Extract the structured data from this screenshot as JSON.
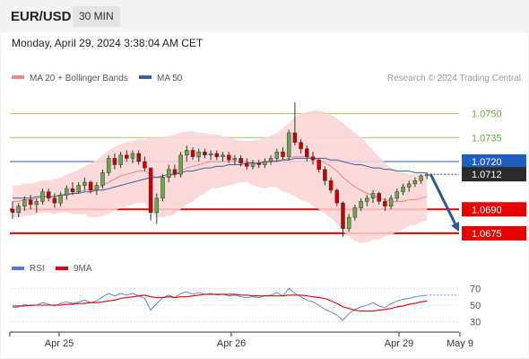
{
  "header": {
    "symbol": "EUR/USD",
    "timeframe": "30 MIN",
    "timestamp": "Monday, April 29, 2024 3:38:04 AM CET"
  },
  "legend": {
    "ma20_label": "MA 20 + Bollinger Bands",
    "ma50_label": "MA 50",
    "credit": "Research © 2024 Trading Central"
  },
  "colors": {
    "bull": "#6aa84f",
    "bear": "#cc0000",
    "ma20": "#e98b8b",
    "ma50": "#3b5fa0",
    "band_fill": "#fbd3d3",
    "support": "#e60000",
    "resistance": "#9ccc65",
    "pivot": "#1f5fbf",
    "arrow": "#2b5797",
    "rsi": "#4a7fd4",
    "rsi_ma": "#e60000"
  },
  "chart_data": [
    {
      "type": "candlestick",
      "title": "EUR/USD 30 MIN",
      "x_tick_labels": [
        "Apr 25",
        "Apr 26",
        "Apr 29",
        "May 9"
      ],
      "ylim": [
        1.0662,
        1.0765
      ],
      "candles": [
        [
          1.069,
          1.0695,
          1.0684,
          1.0688
        ],
        [
          1.0688,
          1.0694,
          1.0685,
          1.0692
        ],
        [
          1.0692,
          1.0698,
          1.0689,
          1.0696
        ],
        [
          1.0696,
          1.0699,
          1.069,
          1.0693
        ],
        [
          1.0693,
          1.0697,
          1.0688,
          1.0695
        ],
        [
          1.0695,
          1.0703,
          1.0693,
          1.0701
        ],
        [
          1.0701,
          1.0703,
          1.0695,
          1.0697
        ],
        [
          1.0697,
          1.07,
          1.0691,
          1.0694
        ],
        [
          1.0694,
          1.0701,
          1.0692,
          1.0699
        ],
        [
          1.0699,
          1.0705,
          1.0696,
          1.0703
        ],
        [
          1.0703,
          1.0707,
          1.0699,
          1.0701
        ],
        [
          1.0701,
          1.0707,
          1.07,
          1.0705
        ],
        [
          1.0705,
          1.071,
          1.0702,
          1.0707
        ],
        [
          1.0707,
          1.0708,
          1.07,
          1.0702
        ],
        [
          1.0702,
          1.0707,
          1.0699,
          1.0705
        ],
        [
          1.0705,
          1.0715,
          1.0703,
          1.0713
        ],
        [
          1.0713,
          1.0724,
          1.0711,
          1.0722
        ],
        [
          1.0722,
          1.0725,
          1.0715,
          1.0718
        ],
        [
          1.0718,
          1.0726,
          1.0716,
          1.0724
        ],
        [
          1.0724,
          1.0727,
          1.072,
          1.0722
        ],
        [
          1.0722,
          1.0727,
          1.0719,
          1.0725
        ],
        [
          1.0725,
          1.0727,
          1.0718,
          1.072
        ],
        [
          1.072,
          1.0723,
          1.0714,
          1.0716
        ],
        [
          1.0716,
          1.0716,
          1.0683,
          1.0688
        ],
        [
          1.0688,
          1.07,
          1.0681,
          1.0697
        ],
        [
          1.0697,
          1.0712,
          1.0695,
          1.071
        ],
        [
          1.071,
          1.0718,
          1.0707,
          1.0715
        ],
        [
          1.0715,
          1.0718,
          1.071,
          1.0712
        ],
        [
          1.0712,
          1.0726,
          1.071,
          1.0724
        ],
        [
          1.0724,
          1.073,
          1.072,
          1.0727
        ],
        [
          1.0727,
          1.0729,
          1.0721,
          1.0723
        ],
        [
          1.0723,
          1.0728,
          1.072,
          1.0726
        ],
        [
          1.0726,
          1.0728,
          1.0722,
          1.0724
        ],
        [
          1.0724,
          1.0727,
          1.0721,
          1.0725
        ],
        [
          1.0725,
          1.0727,
          1.0721,
          1.0723
        ],
        [
          1.0723,
          1.0726,
          1.072,
          1.0724
        ],
        [
          1.0724,
          1.0726,
          1.0719,
          1.0721
        ],
        [
          1.0721,
          1.0724,
          1.0718,
          1.0722
        ],
        [
          1.0722,
          1.0724,
          1.0717,
          1.0719
        ],
        [
          1.0719,
          1.0722,
          1.0715,
          1.0717
        ],
        [
          1.0717,
          1.0721,
          1.0715,
          1.0719
        ],
        [
          1.0719,
          1.0721,
          1.0716,
          1.0718
        ],
        [
          1.0718,
          1.0722,
          1.0716,
          1.072
        ],
        [
          1.072,
          1.0724,
          1.0718,
          1.0722
        ],
        [
          1.0722,
          1.0728,
          1.072,
          1.0726
        ],
        [
          1.0726,
          1.0729,
          1.0721,
          1.0723
        ],
        [
          1.0723,
          1.074,
          1.0721,
          1.0738
        ],
        [
          1.0738,
          1.0757,
          1.073,
          1.0732
        ],
        [
          1.0732,
          1.0734,
          1.0725,
          1.0728
        ],
        [
          1.0728,
          1.073,
          1.072,
          1.0723
        ],
        [
          1.0723,
          1.0726,
          1.0718,
          1.0721
        ],
        [
          1.0721,
          1.0722,
          1.0713,
          1.0715
        ],
        [
          1.0715,
          1.0717,
          1.0705,
          1.0708
        ],
        [
          1.0708,
          1.071,
          1.07,
          1.0702
        ],
        [
          1.0702,
          1.0703,
          1.0692,
          1.0694
        ],
        [
          1.0694,
          1.0695,
          1.0673,
          1.0678
        ],
        [
          1.0678,
          1.0687,
          1.0676,
          1.0685
        ],
        [
          1.0685,
          1.0693,
          1.0683,
          1.0691
        ],
        [
          1.0691,
          1.0697,
          1.0689,
          1.0695
        ],
        [
          1.0695,
          1.0699,
          1.0692,
          1.0697
        ],
        [
          1.0697,
          1.0702,
          1.0694,
          1.07
        ],
        [
          1.07,
          1.0701,
          1.0693,
          1.0695
        ],
        [
          1.0695,
          1.0697,
          1.0689,
          1.0692
        ],
        [
          1.0692,
          1.0699,
          1.069,
          1.0697
        ],
        [
          1.0697,
          1.0703,
          1.0695,
          1.0701
        ],
        [
          1.0701,
          1.0706,
          1.0699,
          1.0704
        ],
        [
          1.0704,
          1.0708,
          1.0701,
          1.0706
        ],
        [
          1.0706,
          1.071,
          1.0704,
          1.0708
        ],
        [
          1.0708,
          1.0712,
          1.0706,
          1.0711
        ],
        [
          1.0711,
          1.0713,
          1.0709,
          1.0712
        ]
      ],
      "ma20": [
        1.0695,
        1.0695,
        1.0696,
        1.0696,
        1.0697,
        1.0698,
        1.0698,
        1.0698,
        1.0699,
        1.07,
        1.07,
        1.0701,
        1.0702,
        1.0702,
        1.0703,
        1.0705,
        1.0707,
        1.0709,
        1.0711,
        1.0712,
        1.0713,
        1.0714,
        1.0714,
        1.0712,
        1.071,
        1.071,
        1.0711,
        1.0712,
        1.0714,
        1.0716,
        1.0717,
        1.0718,
        1.0719,
        1.072,
        1.072,
        1.072,
        1.072,
        1.072,
        1.072,
        1.072,
        1.0719,
        1.0719,
        1.0719,
        1.072,
        1.0721,
        1.0721,
        1.0722,
        1.0723,
        1.0723,
        1.0723,
        1.0722,
        1.0721,
        1.0719,
        1.0717,
        1.0714,
        1.071,
        1.0707,
        1.0704,
        1.0702,
        1.07,
        1.0699,
        1.0697,
        1.0696,
        1.0695,
        1.0695,
        1.0695,
        1.0696,
        1.0696,
        1.0697,
        1.0698
      ],
      "ma50": [
        1.0697,
        1.0697,
        1.0697,
        1.0697,
        1.0698,
        1.0698,
        1.0698,
        1.0698,
        1.0699,
        1.0699,
        1.07,
        1.07,
        1.0701,
        1.0701,
        1.0702,
        1.0702,
        1.0703,
        1.0704,
        1.0705,
        1.0706,
        1.0707,
        1.0708,
        1.0709,
        1.071,
        1.071,
        1.0711,
        1.0712,
        1.0712,
        1.0713,
        1.0714,
        1.0714,
        1.0715,
        1.0716,
        1.0716,
        1.0717,
        1.0717,
        1.0718,
        1.0718,
        1.0718,
        1.0719,
        1.0719,
        1.0719,
        1.072,
        1.072,
        1.072,
        1.0721,
        1.0721,
        1.0722,
        1.0722,
        1.0722,
        1.0722,
        1.0722,
        1.0722,
        1.0721,
        1.0721,
        1.072,
        1.0719,
        1.0718,
        1.0718,
        1.0717,
        1.0716,
        1.0716,
        1.0715,
        1.0715,
        1.0714,
        1.0714,
        1.0714,
        1.0713,
        1.0713,
        1.0713
      ],
      "bb_upper": [
        1.0705,
        1.0705,
        1.0706,
        1.0706,
        1.0707,
        1.0708,
        1.0708,
        1.0709,
        1.071,
        1.0712,
        1.0713,
        1.0715,
        1.0717,
        1.0719,
        1.0721,
        1.0724,
        1.0727,
        1.0729,
        1.0731,
        1.0732,
        1.0733,
        1.0734,
        1.0734,
        1.0735,
        1.0735,
        1.0735,
        1.0736,
        1.0737,
        1.0738,
        1.0739,
        1.0739,
        1.0738,
        1.0738,
        1.0737,
        1.0737,
        1.0736,
        1.0735,
        1.0734,
        1.0733,
        1.0733,
        1.0733,
        1.0734,
        1.0735,
        1.0736,
        1.0738,
        1.0741,
        1.0744,
        1.0748,
        1.075,
        1.0751,
        1.0752,
        1.0752,
        1.0751,
        1.0749,
        1.0747,
        1.0744,
        1.0741,
        1.0738,
        1.0735,
        1.0731,
        1.0727,
        1.0723,
        1.0719,
        1.0716,
        1.0714,
        1.0713,
        1.0712,
        1.0712,
        1.0712,
        1.0713
      ],
      "bb_lower": [
        1.0685,
        1.0685,
        1.0686,
        1.0686,
        1.0687,
        1.0688,
        1.0688,
        1.0687,
        1.0688,
        1.0688,
        1.0687,
        1.0687,
        1.0687,
        1.0685,
        1.0685,
        1.0686,
        1.0687,
        1.0689,
        1.0691,
        1.0692,
        1.0693,
        1.0694,
        1.0694,
        1.0689,
        1.0685,
        1.0685,
        1.0686,
        1.0687,
        1.069,
        1.0693,
        1.0695,
        1.0698,
        1.07,
        1.0703,
        1.0703,
        1.0704,
        1.0705,
        1.0706,
        1.0707,
        1.0707,
        1.0705,
        1.0704,
        1.0703,
        1.0704,
        1.0704,
        1.0701,
        1.07,
        1.0698,
        1.0696,
        1.0695,
        1.0692,
        1.069,
        1.0687,
        1.0685,
        1.0681,
        1.0676,
        1.0673,
        1.067,
        1.0669,
        1.0669,
        1.0671,
        1.0671,
        1.0673,
        1.0674,
        1.0676,
        1.0677,
        1.068,
        1.068,
        1.0682,
        1.0683
      ],
      "horizontal_levels": [
        {
          "value": 1.075,
          "label": "1.0750",
          "kind": "resistance"
        },
        {
          "value": 1.0735,
          "label": "1.0735",
          "kind": "resistance"
        },
        {
          "value": 1.072,
          "label": "1.0720",
          "kind": "pivot"
        },
        {
          "value": 1.0712,
          "label": "1.0712",
          "kind": "last"
        },
        {
          "value": 1.069,
          "label": "1.0690",
          "kind": "support"
        },
        {
          "value": 1.0675,
          "label": "1.0675",
          "kind": "support"
        }
      ],
      "forecast_arrow": {
        "from": 1.0712,
        "to": 1.0676
      }
    },
    {
      "type": "line",
      "title": "RSI",
      "ylim": [
        20,
        80
      ],
      "y_ticks": [
        70,
        50,
        30
      ],
      "series": [
        {
          "name": "RSI",
          "values": [
            47,
            48,
            51,
            49,
            50,
            53,
            51,
            49,
            52,
            54,
            52,
            54,
            56,
            53,
            55,
            60,
            64,
            61,
            64,
            62,
            64,
            61,
            58,
            44,
            52,
            59,
            62,
            59,
            64,
            66,
            63,
            65,
            63,
            64,
            62,
            63,
            61,
            62,
            60,
            59,
            60,
            59,
            61,
            62,
            65,
            61,
            70,
            64,
            60,
            56,
            54,
            50,
            45,
            42,
            38,
            32,
            40,
            45,
            48,
            50,
            53,
            49,
            47,
            52,
            55,
            57,
            58,
            60,
            61,
            62
          ]
        },
        {
          "name": "9MA",
          "values": [
            49,
            49,
            49,
            50,
            50,
            50,
            50,
            50,
            50,
            51,
            51,
            52,
            52,
            53,
            53,
            54,
            55,
            56,
            58,
            59,
            60,
            61,
            62,
            60,
            59,
            59,
            60,
            59,
            60,
            60,
            61,
            62,
            63,
            63,
            63,
            63,
            63,
            63,
            62,
            62,
            61,
            61,
            61,
            61,
            61,
            61,
            62,
            62,
            62,
            61,
            60,
            59,
            58,
            55,
            52,
            48,
            46,
            44,
            43,
            43,
            43,
            44,
            45,
            46,
            48,
            49,
            51,
            52,
            54,
            55
          ]
        }
      ]
    }
  ]
}
